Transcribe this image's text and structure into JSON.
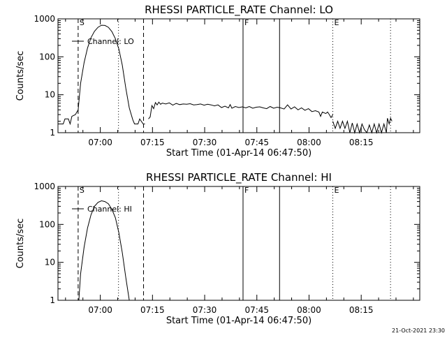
{
  "footer": {
    "stamp": "21-Oct-2021 23:30"
  },
  "chart_data": [
    {
      "type": "line",
      "title": "RHESSI PARTICLE_RATE Channel: LO",
      "xlabel": "Start Time (01-Apr-14 06:47:50)",
      "ylabel": "Counts/sec",
      "yscale": "log",
      "ylim": [
        1,
        1000
      ],
      "xlim_min": [
        0,
        104
      ],
      "x_ticks": [
        {
          "min": 12.17,
          "label": "07:00"
        },
        {
          "min": 27.17,
          "label": "07:15"
        },
        {
          "min": 42.17,
          "label": "07:30"
        },
        {
          "min": 57.17,
          "label": "07:45"
        },
        {
          "min": 72.17,
          "label": "08:00"
        },
        {
          "min": 87.17,
          "label": "08:15"
        }
      ],
      "y_ticks": [
        {
          "v": 1,
          "label": "1"
        },
        {
          "v": 10,
          "label": "10"
        },
        {
          "v": 100,
          "label": "100"
        },
        {
          "v": 1000,
          "label": "1000"
        }
      ],
      "markers": [
        {
          "min": 5.8,
          "style": "dashed",
          "label": "S"
        },
        {
          "min": 17.4,
          "style": "dotted",
          "label": ""
        },
        {
          "min": 24.6,
          "style": "dashed",
          "label": ""
        },
        {
          "min": 53.2,
          "style": "solid",
          "label": "F"
        },
        {
          "min": 63.7,
          "style": "solid",
          "label": ""
        },
        {
          "min": 79.0,
          "style": "dotted",
          "label": "E"
        },
        {
          "min": 95.6,
          "style": "dotted",
          "label": ""
        }
      ],
      "legend": "Channel: LO",
      "series": [
        {
          "name": "Channel: LO",
          "segments": [
            [
              [
                0,
                1.7
              ],
              [
                1.5,
                1.7
              ],
              [
                2,
                2.3
              ],
              [
                3,
                2.3
              ],
              [
                3.5,
                1.7
              ],
              [
                4,
                2.7
              ],
              [
                5,
                3.0
              ],
              [
                5.8,
                4.0
              ],
              [
                6.5,
                20
              ],
              [
                7.5,
                70
              ],
              [
                8.5,
                170
              ],
              [
                9.5,
                320
              ],
              [
                10.5,
                470
              ],
              [
                11.5,
                600
              ],
              [
                12.5,
                680
              ],
              [
                13.5,
                670
              ],
              [
                14.5,
                600
              ],
              [
                15.5,
                460
              ],
              [
                16.5,
                300
              ],
              [
                17.5,
                160
              ],
              [
                18.5,
                60
              ],
              [
                19.5,
                15
              ],
              [
                20.5,
                4.5
              ],
              [
                21.5,
                2.2
              ],
              [
                22,
                1.7
              ],
              [
                23,
                1.7
              ],
              [
                23.5,
                2.3
              ],
              [
                24.5,
                1.7
              ],
              [
                25,
                1.7
              ]
            ],
            [
              [
                26,
                2.3
              ],
              [
                26.5,
                2.6
              ],
              [
                27,
                5.2
              ],
              [
                27.5,
                4.3
              ],
              [
                28,
                6.2
              ],
              [
                28.5,
                5.4
              ],
              [
                29,
                6.4
              ],
              [
                29.5,
                5.6
              ],
              [
                30,
                6.0
              ],
              [
                31,
                5.7
              ],
              [
                32,
                6.1
              ],
              [
                33,
                5.3
              ],
              [
                34,
                5.9
              ],
              [
                35,
                5.5
              ],
              [
                36,
                5.7
              ],
              [
                37,
                5.6
              ],
              [
                38,
                5.8
              ],
              [
                39,
                5.4
              ],
              [
                40,
                5.5
              ],
              [
                41,
                5.7
              ],
              [
                42,
                5.3
              ],
              [
                43,
                5.6
              ],
              [
                44,
                5.4
              ],
              [
                45,
                5.1
              ],
              [
                46,
                5.4
              ],
              [
                47,
                4.6
              ],
              [
                48,
                5.0
              ],
              [
                49,
                4.5
              ],
              [
                49.5,
                5.5
              ],
              [
                50,
                4.4
              ],
              [
                51,
                4.9
              ],
              [
                52,
                4.6
              ],
              [
                53,
                4.8
              ],
              [
                54,
                4.5
              ],
              [
                55,
                4.9
              ],
              [
                56,
                4.4
              ],
              [
                57,
                4.7
              ],
              [
                58,
                4.8
              ],
              [
                59,
                4.5
              ],
              [
                60,
                4.3
              ],
              [
                61,
                4.9
              ],
              [
                62,
                4.4
              ],
              [
                63,
                4.7
              ],
              [
                64,
                4.5
              ],
              [
                65,
                4.2
              ],
              [
                66,
                5.4
              ],
              [
                67,
                4.2
              ],
              [
                68,
                4.8
              ],
              [
                69,
                4.0
              ],
              [
                70,
                4.5
              ],
              [
                71,
                3.9
              ],
              [
                72,
                4.3
              ],
              [
                73,
                3.6
              ],
              [
                74,
                3.8
              ],
              [
                75,
                3.5
              ],
              [
                75.5,
                2.7
              ],
              [
                76,
                3.5
              ],
              [
                77,
                3.2
              ],
              [
                77.5,
                3.5
              ],
              [
                78,
                3.0
              ],
              [
                78.5,
                2.5
              ],
              [
                79,
                3.0
              ]
            ],
            [
              [
                79,
                2.0
              ],
              [
                79.7,
                1.3
              ],
              [
                80.4,
                2.0
              ],
              [
                81.1,
                1.3
              ],
              [
                81.8,
                2.0
              ],
              [
                82.5,
                1.3
              ],
              [
                83.2,
                2.0
              ],
              [
                83.9,
                1.0
              ],
              [
                84.6,
                1.8
              ],
              [
                85.3,
                1.0
              ],
              [
                86,
                1.7
              ],
              [
                86.7,
                1.0
              ],
              [
                87.4,
                1.7
              ],
              [
                88.1,
                1.2
              ],
              [
                88.8,
                1.0
              ],
              [
                89.5,
                1.6
              ],
              [
                90.2,
                1.0
              ],
              [
                90.9,
                1.7
              ],
              [
                91.6,
                1.0
              ],
              [
                92.3,
                1.7
              ],
              [
                93,
                1.0
              ],
              [
                93.7,
                1.7
              ],
              [
                94.4,
                1.0
              ],
              [
                94.7,
                2.4
              ],
              [
                95.2,
                1.7
              ],
              [
                95.6,
                2.4
              ],
              [
                96,
                2.0
              ]
            ]
          ]
        }
      ]
    },
    {
      "type": "line",
      "title": "RHESSI PARTICLE_RATE Channel: HI",
      "xlabel": "Start Time (01-Apr-14 06:47:50)",
      "ylabel": "Counts/sec",
      "yscale": "log",
      "ylim": [
        1,
        1000
      ],
      "xlim_min": [
        0,
        104
      ],
      "x_ticks": [
        {
          "min": 12.17,
          "label": "07:00"
        },
        {
          "min": 27.17,
          "label": "07:15"
        },
        {
          "min": 42.17,
          "label": "07:30"
        },
        {
          "min": 57.17,
          "label": "07:45"
        },
        {
          "min": 72.17,
          "label": "08:00"
        },
        {
          "min": 87.17,
          "label": "08:15"
        }
      ],
      "y_ticks": [
        {
          "v": 1,
          "label": "1"
        },
        {
          "v": 10,
          "label": "10"
        },
        {
          "v": 100,
          "label": "100"
        },
        {
          "v": 1000,
          "label": "1000"
        }
      ],
      "markers": [
        {
          "min": 5.8,
          "style": "dashed",
          "label": "S"
        },
        {
          "min": 17.4,
          "style": "dotted",
          "label": ""
        },
        {
          "min": 24.6,
          "style": "dashed",
          "label": ""
        },
        {
          "min": 53.2,
          "style": "solid",
          "label": "F"
        },
        {
          "min": 63.7,
          "style": "solid",
          "label": ""
        },
        {
          "min": 79.0,
          "style": "dotted",
          "label": "E"
        },
        {
          "min": 95.6,
          "style": "dotted",
          "label": ""
        }
      ],
      "legend": "Channel: HI",
      "series": [
        {
          "name": "Channel: HI",
          "segments": [
            [
              [
                6.0,
                1.0
              ],
              [
                6.5,
                5
              ],
              [
                7.5,
                25
              ],
              [
                8.5,
                80
              ],
              [
                9.5,
                180
              ],
              [
                10.5,
                300
              ],
              [
                11.5,
                380
              ],
              [
                12.5,
                420
              ],
              [
                13.5,
                400
              ],
              [
                14.5,
                350
              ],
              [
                15.5,
                250
              ],
              [
                16.5,
                150
              ],
              [
                17.5,
                60
              ],
              [
                18.5,
                18
              ],
              [
                19.5,
                4
              ],
              [
                20.5,
                1.0
              ]
            ]
          ]
        }
      ]
    }
  ]
}
